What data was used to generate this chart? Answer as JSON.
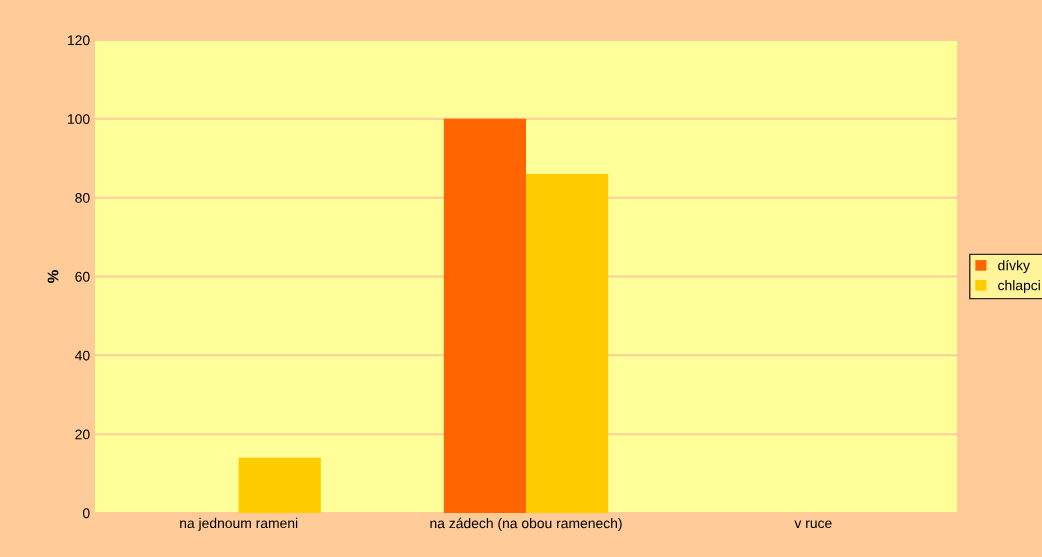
{
  "chart_data": {
    "type": "bar",
    "ylabel": "%",
    "categories": [
      "na jednoum rameni",
      "na zádech (na obou ramenech)",
      "v ruce"
    ],
    "series": [
      {
        "name": "dívky",
        "color": "#ff6600",
        "values": [
          0,
          100,
          0
        ]
      },
      {
        "name": "chlapci",
        "color": "#ffcc00",
        "values": [
          14,
          86,
          0
        ]
      }
    ],
    "ylim": [
      0,
      120
    ],
    "yticks": [
      0,
      20,
      40,
      60,
      80,
      100,
      120
    ],
    "grid": "y",
    "legend": "right"
  }
}
